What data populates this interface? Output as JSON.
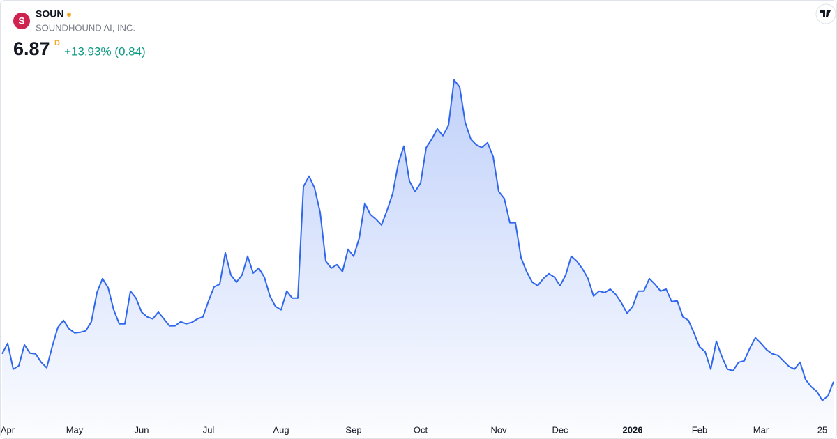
{
  "header": {
    "logo_letter": "S",
    "symbol": "SOUN",
    "company": "SOUNDHOUND AI, INC.",
    "price": "6.87",
    "price_flag": "D",
    "change": "+13.93% (0.84)"
  },
  "chart_data": {
    "type": "area",
    "color": "#2f66ee",
    "ylim": [
      5.1,
      22.4
    ],
    "categories": [
      null,
      "Apr",
      null,
      null,
      null,
      null,
      null,
      null,
      null,
      null,
      null,
      null,
      null,
      "May",
      null,
      null,
      null,
      null,
      null,
      null,
      null,
      null,
      null,
      null,
      null,
      "Jun",
      null,
      null,
      null,
      null,
      null,
      null,
      null,
      null,
      null,
      null,
      null,
      "Jul",
      null,
      null,
      null,
      null,
      null,
      null,
      null,
      null,
      null,
      null,
      null,
      null,
      "Aug",
      null,
      null,
      null,
      null,
      null,
      null,
      null,
      null,
      null,
      null,
      null,
      null,
      "Sep",
      null,
      null,
      null,
      null,
      null,
      null,
      null,
      null,
      null,
      null,
      null,
      "Oct",
      null,
      null,
      null,
      null,
      null,
      null,
      null,
      null,
      null,
      null,
      null,
      null,
      null,
      "Nov",
      null,
      null,
      null,
      null,
      null,
      null,
      null,
      null,
      null,
      null,
      "Dec",
      null,
      null,
      null,
      null,
      null,
      null,
      null,
      null,
      null,
      null,
      null,
      null,
      "2026",
      null,
      null,
      null,
      null,
      null,
      null,
      null,
      null,
      null,
      null,
      null,
      "Feb",
      null,
      null,
      null,
      null,
      null,
      null,
      null,
      null,
      null,
      null,
      "Mar",
      null,
      null,
      null,
      null,
      null,
      null,
      null,
      null,
      null,
      null,
      "25",
      null,
      null
    ],
    "values": [
      8.23,
      8.74,
      7.48,
      7.65,
      8.67,
      8.26,
      8.23,
      7.82,
      7.55,
      8.6,
      9.52,
      9.86,
      9.45,
      9.25,
      9.28,
      9.35,
      9.79,
      11.21,
      11.89,
      11.45,
      10.37,
      9.69,
      9.69,
      11.28,
      10.94,
      10.26,
      10.03,
      9.93,
      10.26,
      9.93,
      9.59,
      9.59,
      9.79,
      9.69,
      9.76,
      9.93,
      10.03,
      10.81,
      11.49,
      11.62,
      13.15,
      12.06,
      11.72,
      12.06,
      12.98,
      12.16,
      12.4,
      11.96,
      11.04,
      10.53,
      10.37,
      11.28,
      10.94,
      10.94,
      16.37,
      16.88,
      16.3,
      15.11,
      12.74,
      12.4,
      12.57,
      12.23,
      13.32,
      12.98,
      13.86,
      15.56,
      15.01,
      14.78,
      14.5,
      15.22,
      16.03,
      17.49,
      18.34,
      16.64,
      16.13,
      16.54,
      18.27,
      18.68,
      19.18,
      18.85,
      19.35,
      21.56,
      21.22,
      19.49,
      18.68,
      18.4,
      18.27,
      18.51,
      17.83,
      16.13,
      15.79,
      14.61,
      14.61,
      12.91,
      12.23,
      11.72,
      11.55,
      11.89,
      12.13,
      11.96,
      11.55,
      12.06,
      12.98,
      12.74,
      12.37,
      11.89,
      11.04,
      11.28,
      11.21,
      11.38,
      11.11,
      10.71,
      10.2,
      10.53,
      11.28,
      11.28,
      11.89,
      11.62,
      11.28,
      11.38,
      10.77,
      10.81,
      10.03,
      9.86,
      9.25,
      8.57,
      8.33,
      7.48,
      8.84,
      8.09,
      7.48,
      7.41,
      7.82,
      7.89,
      8.5,
      9.01,
      8.74,
      8.43,
      8.23,
      8.16,
      7.89,
      7.62,
      7.48,
      7.82,
      6.97,
      6.63,
      6.4,
      5.96,
      6.18,
      6.87
    ]
  }
}
